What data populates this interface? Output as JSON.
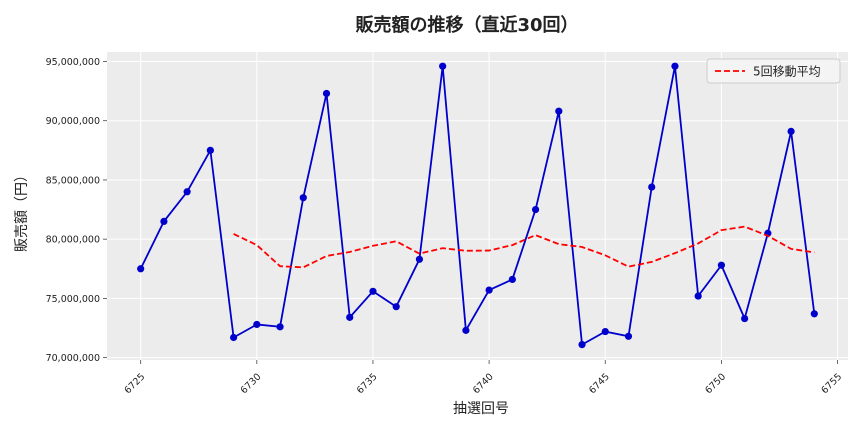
{
  "chart_data": {
    "type": "line",
    "title": "販売額の推移（直近30回）",
    "xlabel": "抽選回号",
    "ylabel": "販売額（円）",
    "xlim": [
      6723.55,
      6755.45
    ],
    "ylim": [
      69800000,
      95800000
    ],
    "x_ticks": [
      6725,
      6730,
      6735,
      6740,
      6745,
      6750,
      6755
    ],
    "y_ticks": [
      70000000,
      75000000,
      80000000,
      85000000,
      90000000,
      95000000
    ],
    "y_tick_labels": [
      "70,000,000",
      "75,000,000",
      "80,000,000",
      "85,000,000",
      "90,000,000",
      "95,000,000"
    ],
    "grid": true,
    "legend_position": "top-right",
    "series": [
      {
        "color": "#0000cc",
        "style": "solid-with-markers",
        "x": [
          6725,
          6726,
          6727,
          6728,
          6729,
          6730,
          6731,
          6732,
          6733,
          6734,
          6735,
          6736,
          6737,
          6738,
          6739,
          6740,
          6741,
          6742,
          6743,
          6744,
          6745,
          6746,
          6747,
          6748,
          6749,
          6750,
          6751,
          6752,
          6753,
          6754
        ],
        "values": [
          77500000,
          81500000,
          84000000,
          87500000,
          71700000,
          72800000,
          72600000,
          83500000,
          92300000,
          73400000,
          75600000,
          74300000,
          78300000,
          94600000,
          72300000,
          75700000,
          76600000,
          82500000,
          90800000,
          71100000,
          72200000,
          71800000,
          84400000,
          94600000,
          75200000,
          77800000,
          73300000,
          80500000,
          89100000,
          73700000
        ]
      },
      {
        "name": "5回移動平均",
        "color": "#ff0000",
        "style": "dashed",
        "x": [
          6729,
          6730,
          6731,
          6732,
          6733,
          6734,
          6735,
          6736,
          6737,
          6738,
          6739,
          6740,
          6741,
          6742,
          6743,
          6744,
          6745,
          6746,
          6747,
          6748,
          6749,
          6750,
          6751,
          6752,
          6753,
          6754
        ],
        "values": [
          80440000,
          79500000,
          77720000,
          77620000,
          78580000,
          78920000,
          79440000,
          79820000,
          78780000,
          79240000,
          79020000,
          79040000,
          79500000,
          80340000,
          79580000,
          79340000,
          78640000,
          77680000,
          78080000,
          78820000,
          79640000,
          80760000,
          81060000,
          80280000,
          79180000,
          78880000
        ]
      }
    ]
  }
}
